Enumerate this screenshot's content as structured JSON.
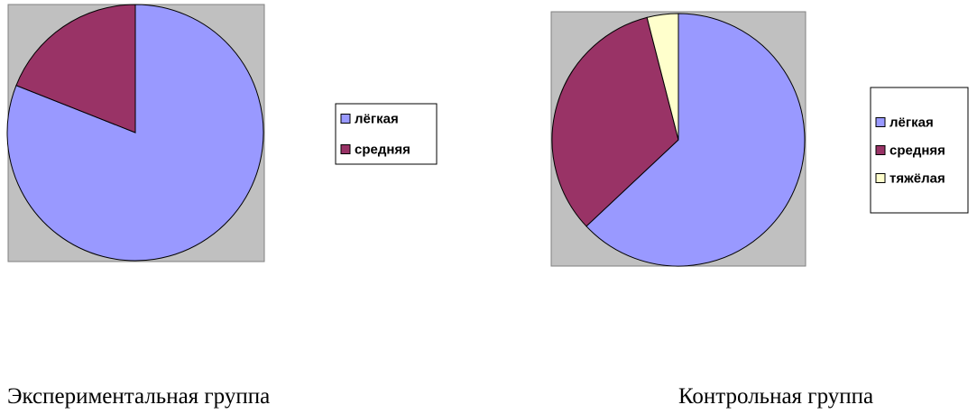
{
  "chart_data": [
    {
      "type": "pie",
      "title": "Экспериментальная группа",
      "categories": [
        "лёгкая",
        "средняя"
      ],
      "values": [
        81,
        19
      ],
      "colors": [
        "#9999ff",
        "#993366"
      ]
    },
    {
      "type": "pie",
      "title": "Контрольная группа",
      "categories": [
        "лёгкая",
        "средняя",
        "тяжёлая"
      ],
      "values": [
        63,
        33,
        4
      ],
      "colors": [
        "#9999ff",
        "#993366",
        "#ffffcc"
      ]
    }
  ]
}
